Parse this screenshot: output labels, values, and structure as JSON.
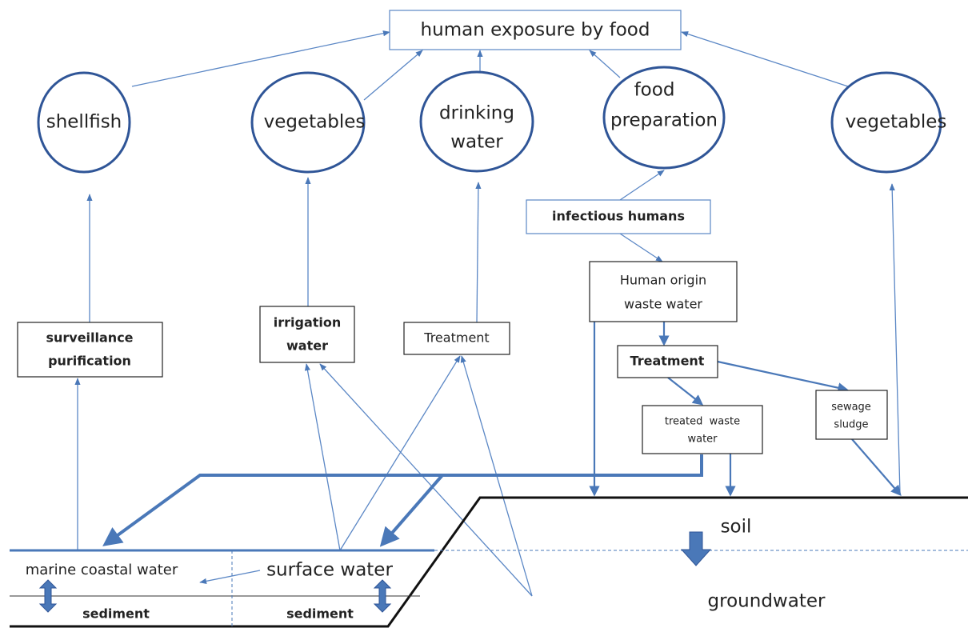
{
  "top": {
    "label": [
      "human exposure by food"
    ]
  },
  "nodes": [
    {
      "label": [
        "shellfish"
      ]
    },
    {
      "label": [
        "vegetables"
      ]
    },
    {
      "label": [
        "drinking",
        "water"
      ]
    },
    {
      "label": [
        "food",
        "preparation"
      ]
    },
    {
      "label": [
        "vegetables"
      ]
    },
    {
      "label": [
        "infectious humans"
      ]
    },
    {
      "label": [
        "Human origin",
        "waste water"
      ]
    },
    {
      "label": [
        "surveillance",
        "purification"
      ]
    },
    {
      "label": [
        "irrigation",
        "water"
      ]
    },
    {
      "label": [
        "Treatment"
      ]
    },
    {
      "label": [
        "Treatment"
      ]
    },
    {
      "label": [
        "treated  waste",
        "water"
      ]
    },
    {
      "label": [
        "sewage",
        "sludge"
      ]
    }
  ],
  "regions": [
    {
      "label": "soil"
    },
    {
      "label": "groundwater"
    },
    {
      "label": "marine coastal water"
    },
    {
      "label": "surface water"
    },
    {
      "label": "sediment"
    },
    {
      "label": "sediment"
    }
  ]
}
